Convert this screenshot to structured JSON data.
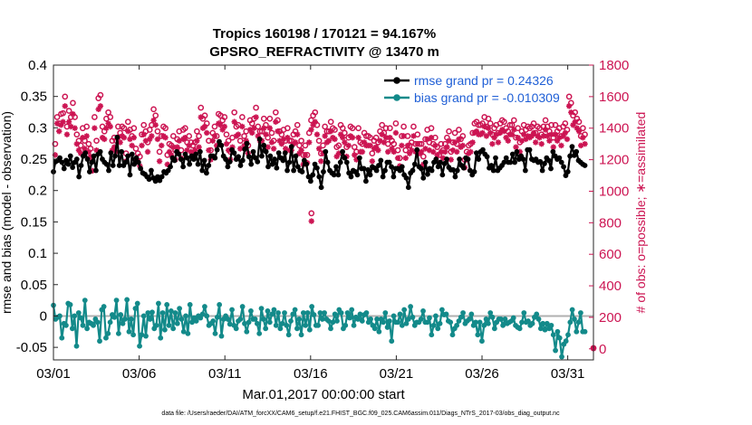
{
  "chart_data": {
    "type": "line",
    "title": "Tropics 160198 / 170121 = 94.167%",
    "subtitle": "GPSRO_REFRACTIVITY @ 13470 m",
    "xlabel": "Mar.01,2017 00:00:00 start",
    "ylabel": "rmse and bias (model - observation)",
    "y2label": "# of obs: o=possible; ∗=assimilated",
    "footnote": "data file: /Users/raeder/DAI/ATM_forcXX/CAM6_setup/f.e21.FHIST_BGC.f09_025.CAM6assim.011/Diags_NTrS_2017-03/obs_diag_output.nc",
    "xlim": [
      0,
      31.5
    ],
    "ylim": [
      -0.07,
      0.4
    ],
    "y2lim": [
      -70,
      1800
    ],
    "x_ticks": [
      0,
      5,
      10,
      15,
      20,
      25,
      30
    ],
    "x_tick_labels": [
      "03/01",
      "03/06",
      "03/11",
      "03/16",
      "03/21",
      "03/26",
      "03/31"
    ],
    "y_ticks": [
      -0.05,
      0,
      0.05,
      0.1,
      0.15,
      0.2,
      0.25,
      0.3,
      0.35,
      0.4
    ],
    "y_tick_labels": [
      "-0.05",
      "0",
      "0.05",
      "0.1",
      "0.15",
      "0.2",
      "0.25",
      "0.3",
      "0.35",
      "0.4"
    ],
    "y2_ticks": [
      0,
      200,
      400,
      600,
      800,
      1000,
      1200,
      1400,
      1600,
      1800
    ],
    "y2_tick_labels": [
      "0",
      "200",
      "400",
      "600",
      "800",
      "1000",
      "1200",
      "1400",
      "1600",
      "1800"
    ],
    "legend": [
      "rmse grand pr = 0.24326",
      "bias grand pr = -0.010309"
    ],
    "colors": {
      "rmse": "#000000",
      "bias": "#138a8a",
      "obs": "#cc1452",
      "zero": "#b0b0b0"
    },
    "series": [
      {
        "name": "rmse",
        "values": [
          0.23,
          0.246,
          0.248,
          0.252,
          0.245,
          0.235,
          0.248,
          0.242,
          0.255,
          0.237,
          0.245,
          0.25,
          0.222,
          0.24,
          0.255,
          0.26,
          0.25,
          0.23,
          0.245,
          0.255,
          0.232,
          0.258,
          0.262,
          0.25,
          0.245,
          0.242,
          0.232,
          0.26,
          0.24,
          0.255,
          0.285,
          0.24,
          0.262,
          0.24,
          0.245,
          0.255,
          0.225,
          0.258,
          0.242,
          0.252,
          0.245,
          0.235,
          0.228,
          0.226,
          0.222,
          0.218,
          0.232,
          0.22,
          0.215,
          0.222,
          0.216,
          0.222,
          0.23,
          0.228,
          0.232,
          0.238,
          0.252,
          0.248,
          0.262,
          0.258,
          0.25,
          0.238,
          0.258,
          0.252,
          0.242,
          0.255,
          0.25,
          0.258,
          0.242,
          0.262,
          0.232,
          0.248,
          0.228,
          0.24,
          0.255,
          0.255,
          0.252,
          0.265,
          0.278,
          0.272,
          0.255,
          0.25,
          0.238,
          0.246,
          0.265,
          0.26,
          0.25,
          0.254,
          0.24,
          0.248,
          0.266,
          0.275,
          0.254,
          0.242,
          0.262,
          0.252,
          0.246,
          0.282,
          0.255,
          0.272,
          0.262,
          0.238,
          0.255,
          0.242,
          0.25,
          0.236,
          0.26,
          0.252,
          0.248,
          0.26,
          0.232,
          0.245,
          0.27,
          0.232,
          0.255,
          0.238,
          0.232,
          0.23,
          0.248,
          0.242,
          0.222,
          0.215,
          0.225,
          0.242,
          0.236,
          0.222,
          0.205,
          0.23,
          0.262,
          0.245,
          0.232,
          0.228,
          0.225,
          0.238,
          0.225,
          0.245,
          0.262,
          0.252,
          0.245,
          0.228,
          0.222,
          0.232,
          0.23,
          0.225,
          0.252,
          0.235,
          0.235,
          0.215,
          0.233,
          0.225,
          0.238,
          0.236,
          0.232,
          0.24,
          0.248,
          0.222,
          0.232,
          0.245,
          0.245,
          0.238,
          0.222,
          0.235,
          0.235,
          0.232,
          0.238,
          0.225,
          0.22,
          0.205,
          0.228,
          0.232,
          0.242,
          0.265,
          0.238,
          0.235,
          0.22,
          0.245,
          0.226,
          0.235,
          0.232,
          0.245,
          0.25,
          0.238,
          0.245,
          0.225,
          0.243,
          0.25,
          0.237,
          0.233,
          0.233,
          0.222,
          0.232,
          0.25,
          0.24,
          0.236,
          0.252,
          0.25,
          0.232,
          0.225,
          0.23,
          0.26,
          0.25,
          0.262,
          0.265,
          0.258,
          0.254,
          0.236,
          0.24,
          0.232,
          0.252,
          0.232,
          0.236,
          0.24,
          0.245,
          0.252,
          0.245,
          0.245,
          0.258,
          0.245,
          0.262,
          0.25,
          0.255,
          0.25,
          0.232,
          0.265,
          0.265,
          0.25,
          0.248,
          0.25,
          0.245,
          0.246,
          0.232,
          0.243,
          0.252,
          0.248,
          0.235,
          0.262,
          0.255,
          0.25,
          0.252,
          0.245,
          0.238,
          0.224,
          0.23,
          0.255,
          0.27,
          0.256,
          0.262,
          0.248,
          0.245,
          0.242,
          0.24
        ]
      },
      {
        "name": "bias",
        "values": [
          0.017,
          -0.005,
          -0.002,
          0.0,
          -0.035,
          -0.012,
          -0.015,
          0.02,
          0.018,
          -0.02,
          0.0,
          -0.048,
          0.005,
          -0.003,
          -0.015,
          0.025,
          -0.02,
          -0.01,
          -0.012,
          -0.015,
          -0.005,
          -0.01,
          -0.04,
          0.01,
          0.015,
          -0.035,
          -0.028,
          -0.01,
          0.002,
          -0.002,
          0.025,
          -0.028,
          0.002,
          -0.012,
          -0.005,
          0.026,
          -0.025,
          -0.005,
          -0.03,
          0.012,
          0.02,
          -0.048,
          -0.03,
          0.0,
          -0.032,
          0.005,
          -0.005,
          0.006,
          -0.02,
          -0.015,
          0.02,
          -0.035,
          0.005,
          -0.022,
          0.018,
          -0.015,
          0.008,
          -0.02,
          0.005,
          -0.012,
          0.012,
          -0.005,
          -0.025,
          0.0,
          -0.028,
          0.018,
          -0.01,
          -0.003,
          -0.008,
          0.0,
          -0.003,
          0.003,
          0.015,
          0.0,
          -0.015,
          -0.012,
          -0.008,
          -0.028,
          -0.002,
          0.018,
          -0.032,
          -0.005,
          0.0,
          -0.005,
          -0.013,
          0.01,
          -0.015,
          -0.02,
          -0.008,
          -0.005,
          0.015,
          -0.012,
          -0.025,
          -0.01,
          0.008,
          -0.005,
          -0.005,
          -0.012,
          -0.028,
          0.012,
          -0.005,
          -0.02,
          0.008,
          -0.01,
          0.003,
          0.01,
          -0.015,
          0.005,
          -0.02,
          -0.012,
          0.005,
          -0.015,
          -0.03,
          -0.008,
          0.003,
          0.01,
          -0.02,
          -0.005,
          -0.03,
          0.005,
          -0.015,
          0.005,
          -0.022,
          0.015,
          0.002,
          -0.015,
          -0.015,
          0.005,
          -0.005,
          0.005,
          -0.005,
          -0.008,
          -0.02,
          -0.01,
          0.003,
          -0.008,
          0.01,
          0.005,
          -0.02,
          -0.015,
          0.005,
          -0.003,
          0.01,
          -0.015,
          -0.002,
          -0.005,
          0.003,
          -0.008,
          0.002,
          0.005,
          -0.01,
          -0.005,
          -0.015,
          -0.02,
          -0.005,
          -0.025,
          -0.005,
          -0.01,
          0.005,
          -0.018,
          -0.008,
          -0.04,
          0.0,
          -0.01,
          -0.01,
          0.003,
          -0.015,
          0.01,
          -0.012,
          -0.005,
          0.015,
          -0.002,
          -0.015,
          -0.01,
          -0.01,
          -0.005,
          0.008,
          -0.01,
          -0.01,
          -0.003,
          -0.03,
          -0.015,
          0.0,
          -0.02,
          -0.012,
          0.01,
          0.002,
          0.003,
          -0.008,
          -0.01,
          -0.03,
          -0.02,
          -0.015,
          -0.008,
          -0.002,
          0.005,
          -0.012,
          -0.008,
          -0.005,
          0.003,
          -0.015,
          -0.01,
          -0.03,
          -0.01,
          -0.04,
          -0.015,
          -0.005,
          -0.012,
          0.005,
          -0.002,
          -0.02,
          -0.01,
          -0.005,
          -0.005,
          -0.015,
          -0.005,
          -0.012,
          -0.01,
          -0.008,
          -0.003,
          -0.015,
          -0.018,
          -0.02,
          -0.01,
          0.005,
          -0.01,
          -0.008,
          -0.015,
          -0.012,
          -0.002,
          0.003,
          -0.005,
          -0.02,
          -0.012,
          -0.022,
          -0.012,
          -0.02,
          -0.015,
          -0.03,
          -0.055,
          -0.025,
          -0.035,
          -0.065,
          -0.045,
          -0.04,
          -0.03,
          -0.01,
          0.01,
          -0.005,
          -0.025,
          -0.01,
          0.005,
          -0.025,
          -0.025
        ]
      },
      {
        "name": "obs_possible",
        "marker": "o",
        "values": [
          1300,
          1470,
          1430,
          1490,
          1495,
          1600,
          1410,
          1510,
          1470,
          1560,
          1470,
          1360,
          1320,
          1290,
          1400,
          1320,
          1410,
          1300,
          1270,
          1190,
          1470,
          1320,
          1590,
          1610,
          1410,
          1380,
          1460,
          1500,
          1470,
          1320,
          1340,
          1320,
          1410,
          1370,
          1410,
          1400,
          1240,
          1440,
          1390,
          1350,
          1400,
          1270,
          1240,
          1220,
          1360,
          1420,
          1380,
          1310,
          1390,
          1420,
          1520,
          1480,
          1380,
          1250,
          1350,
          1410,
          1400,
          1230,
          1300,
          1290,
          1350,
          1260,
          1330,
          1380,
          1260,
          1390,
          1400,
          1310,
          1350,
          1310,
          1290,
          1310,
          1380,
          1350,
          1530,
          1460,
          1480,
          1430,
          1320,
          1260,
          1370,
          1410,
          1350,
          1490,
          1480,
          1450,
          1470,
          1360,
          1320,
          1250,
          1340,
          1500,
          1410,
          1420,
          1320,
          1470,
          1350,
          1380,
          1290,
          1450,
          1430,
          1460,
          1530,
          1410,
          1380,
          1380,
          1460,
          1420,
          1340,
          1460,
          1370,
          1320,
          1500,
          1450,
          1380,
          1360,
          1390,
          1320,
          1400,
          1320,
          1320,
          1360,
          1380,
          1420,
          1290,
          1320,
          1230,
          1290,
          1230,
          1370,
          1450,
          1480,
          1500,
          1420,
          1320,
          1240,
          1290,
          1410,
          1380,
          1380,
          1440,
          1400,
          1390,
          1280,
          1290,
          1420,
          1400,
          1370,
          1280,
          1340,
          1410,
          1400,
          1280,
          1250,
          1400,
          1310,
          1300,
          1370,
          1350,
          1350,
          1340,
          1240,
          1320,
          1340,
          1310,
          1380,
          1420,
          1370,
          1400,
          1300,
          1400,
          1320,
          1300,
          1430,
          1260,
          1210,
          1350,
          1410,
          1260,
          1350,
          1290,
          1310,
          1410,
          1300,
          1360,
          1300,
          1300,
          1220,
          1330,
          1390,
          1310,
          1400,
          1300,
          1340,
          1280,
          1230,
          1300,
          1260,
          1300,
          1340,
          1380,
          1250,
          1310,
          1370,
          1300,
          1390,
          1330,
          1350,
          1200,
          1250,
          1290,
          1300,
          1370,
          1430,
          1440,
          1420,
          1420,
          1430,
          1470,
          1410,
          1460,
          1430,
          1360,
          1400,
          1420,
          1370,
          1430,
          1450,
          1440,
          1400,
          1380,
          1420,
          1420,
          1450,
          1340,
          1400,
          1310,
          1380,
          1420,
          1390,
          1410,
          1400,
          1410,
          1430,
          1370,
          1410,
          1400,
          1360,
          1410,
          1450,
          1410,
          1380,
          1420,
          1340,
          1420,
          1380,
          1400,
          1350,
          1410,
          1430,
          1390,
          1600,
          1560,
          1480,
          1500,
          1460,
          1440,
          1350,
          1400,
          1360
        ]
      },
      {
        "name": "obs_assimilated",
        "marker": "*",
        "values": [
          1230,
          1430,
          1380,
          1420,
          1440,
          1540,
          1360,
          1440,
          1410,
          1490,
          1400,
          1300,
          1260,
          1240,
          1340,
          1270,
          1350,
          1250,
          1220,
          1130,
          1400,
          1260,
          1520,
          1540,
          1340,
          1330,
          1400,
          1430,
          1410,
          1260,
          1280,
          1250,
          1340,
          1310,
          1350,
          1340,
          1190,
          1380,
          1330,
          1290,
          1340,
          1200,
          1190,
          1160,
          1290,
          1360,
          1320,
          1250,
          1330,
          1350,
          1450,
          1420,
          1330,
          1190,
          1290,
          1350,
          1340,
          1170,
          1250,
          1230,
          1280,
          1200,
          1280,
          1320,
          1210,
          1330,
          1340,
          1260,
          1290,
          1250,
          1240,
          1260,
          1320,
          1280,
          1470,
          1400,
          1410,
          1370,
          1260,
          1200,
          1320,
          1350,
          1290,
          1430,
          1420,
          1390,
          1410,
          1300,
          1260,
          1200,
          1280,
          1440,
          1350,
          1360,
          1270,
          1410,
          1290,
          1320,
          1240,
          1390,
          1370,
          1400,
          1470,
          1350,
          1320,
          1320,
          1400,
          1360,
          1280,
          1400,
          1310,
          1270,
          1440,
          1380,
          1320,
          1300,
          1330,
          1270,
          1340,
          1260,
          1260,
          1300,
          1310,
          1360,
          1240,
          1260,
          1170,
          1230,
          1180,
          1310,
          1390,
          1420,
          1440,
          1360,
          1270,
          1190,
          1240,
          1350,
          1310,
          1320,
          1380,
          1340,
          1330,
          1220,
          1240,
          1360,
          1340,
          1310,
          1220,
          1290,
          1350,
          1340,
          1230,
          1200,
          1340,
          1250,
          1250,
          1310,
          1290,
          1290,
          1290,
          1190,
          1270,
          1280,
          1260,
          1320,
          1360,
          1310,
          1340,
          1250,
          1340,
          1270,
          1250,
          1370,
          1210,
          1160,
          1290,
          1350,
          1210,
          1290,
          1240,
          1260,
          1350,
          1250,
          1300,
          1240,
          1250,
          1170,
          1270,
          1330,
          1260,
          1340,
          1250,
          1290,
          1230,
          1180,
          1250,
          1210,
          1250,
          1280,
          1320,
          1200,
          1260,
          1310,
          1250,
          1330,
          1280,
          1290,
          1150,
          1200,
          1240,
          1250,
          1310,
          1370,
          1380,
          1360,
          1360,
          1370,
          1410,
          1350,
          1400,
          1370,
          1300,
          1340,
          1360,
          1310,
          1370,
          1390,
          1380,
          1340,
          1320,
          1360,
          1360,
          1390,
          1280,
          1340,
          1250,
          1320,
          1360,
          1330,
          1350,
          1340,
          1350,
          1370,
          1310,
          1350,
          1340,
          1300,
          1350,
          1390,
          1350,
          1320,
          1360,
          1280,
          1360,
          1320,
          1340,
          1290,
          1350,
          1370,
          1330,
          1540,
          1500,
          1420,
          1440,
          1400,
          1380,
          1290,
          1340,
          1300
        ]
      }
    ],
    "obs_special_points": [
      {
        "x": 15.05,
        "possible": 860,
        "assimilated": 810
      },
      {
        "x": 31.5,
        "possible": 5,
        "assimilated": 2
      }
    ]
  }
}
